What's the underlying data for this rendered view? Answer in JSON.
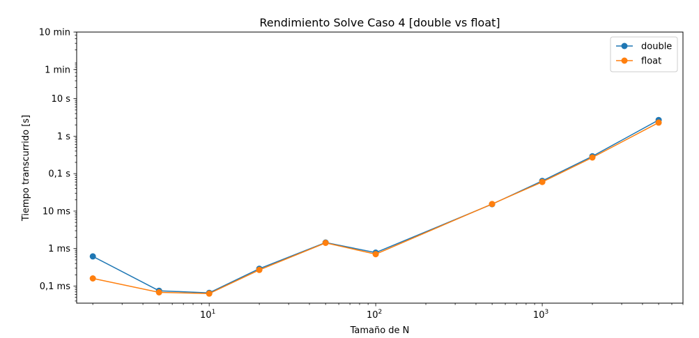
{
  "chart_data": {
    "type": "line",
    "title": "Rendimiento Solve Caso 4 [double vs float]",
    "xlabel": "Tamaño de N",
    "ylabel": "Tiempo transcurrido [s]",
    "xscale": "log",
    "yscale": "log",
    "xlim": [
      1.6,
      7000
    ],
    "ylim": [
      3.5e-05,
      600
    ],
    "x": [
      2,
      5,
      10,
      20,
      50,
      100,
      500,
      1000,
      2000,
      5000
    ],
    "series": [
      {
        "name": "double",
        "color": "#1f77b4",
        "values": [
          0.00062,
          7.5e-05,
          6.6e-05,
          0.00029,
          0.00145,
          0.00078,
          0.0153,
          0.064,
          0.29,
          2.7
        ]
      },
      {
        "name": "float",
        "color": "#ff7f0e",
        "values": [
          0.00016,
          6.8e-05,
          6.3e-05,
          0.00027,
          0.00142,
          0.00071,
          0.0155,
          0.06,
          0.27,
          2.3
        ]
      }
    ],
    "xticks": [
      {
        "value": 10,
        "base": "10",
        "exp": "1"
      },
      {
        "value": 100,
        "base": "10",
        "exp": "2"
      },
      {
        "value": 1000,
        "base": "10",
        "exp": "3"
      }
    ],
    "yticks": [
      {
        "value": 0.0001,
        "label": "0,1 ms"
      },
      {
        "value": 0.001,
        "label": "1 ms"
      },
      {
        "value": 0.01,
        "label": "10 ms"
      },
      {
        "value": 0.1,
        "label": "0,1 s"
      },
      {
        "value": 1,
        "label": "1 s"
      },
      {
        "value": 10,
        "label": "10 s"
      },
      {
        "value": 60,
        "label": "1 min"
      },
      {
        "value": 600,
        "label": "10 min"
      }
    ],
    "grid": false,
    "legend_position": "top-right"
  }
}
